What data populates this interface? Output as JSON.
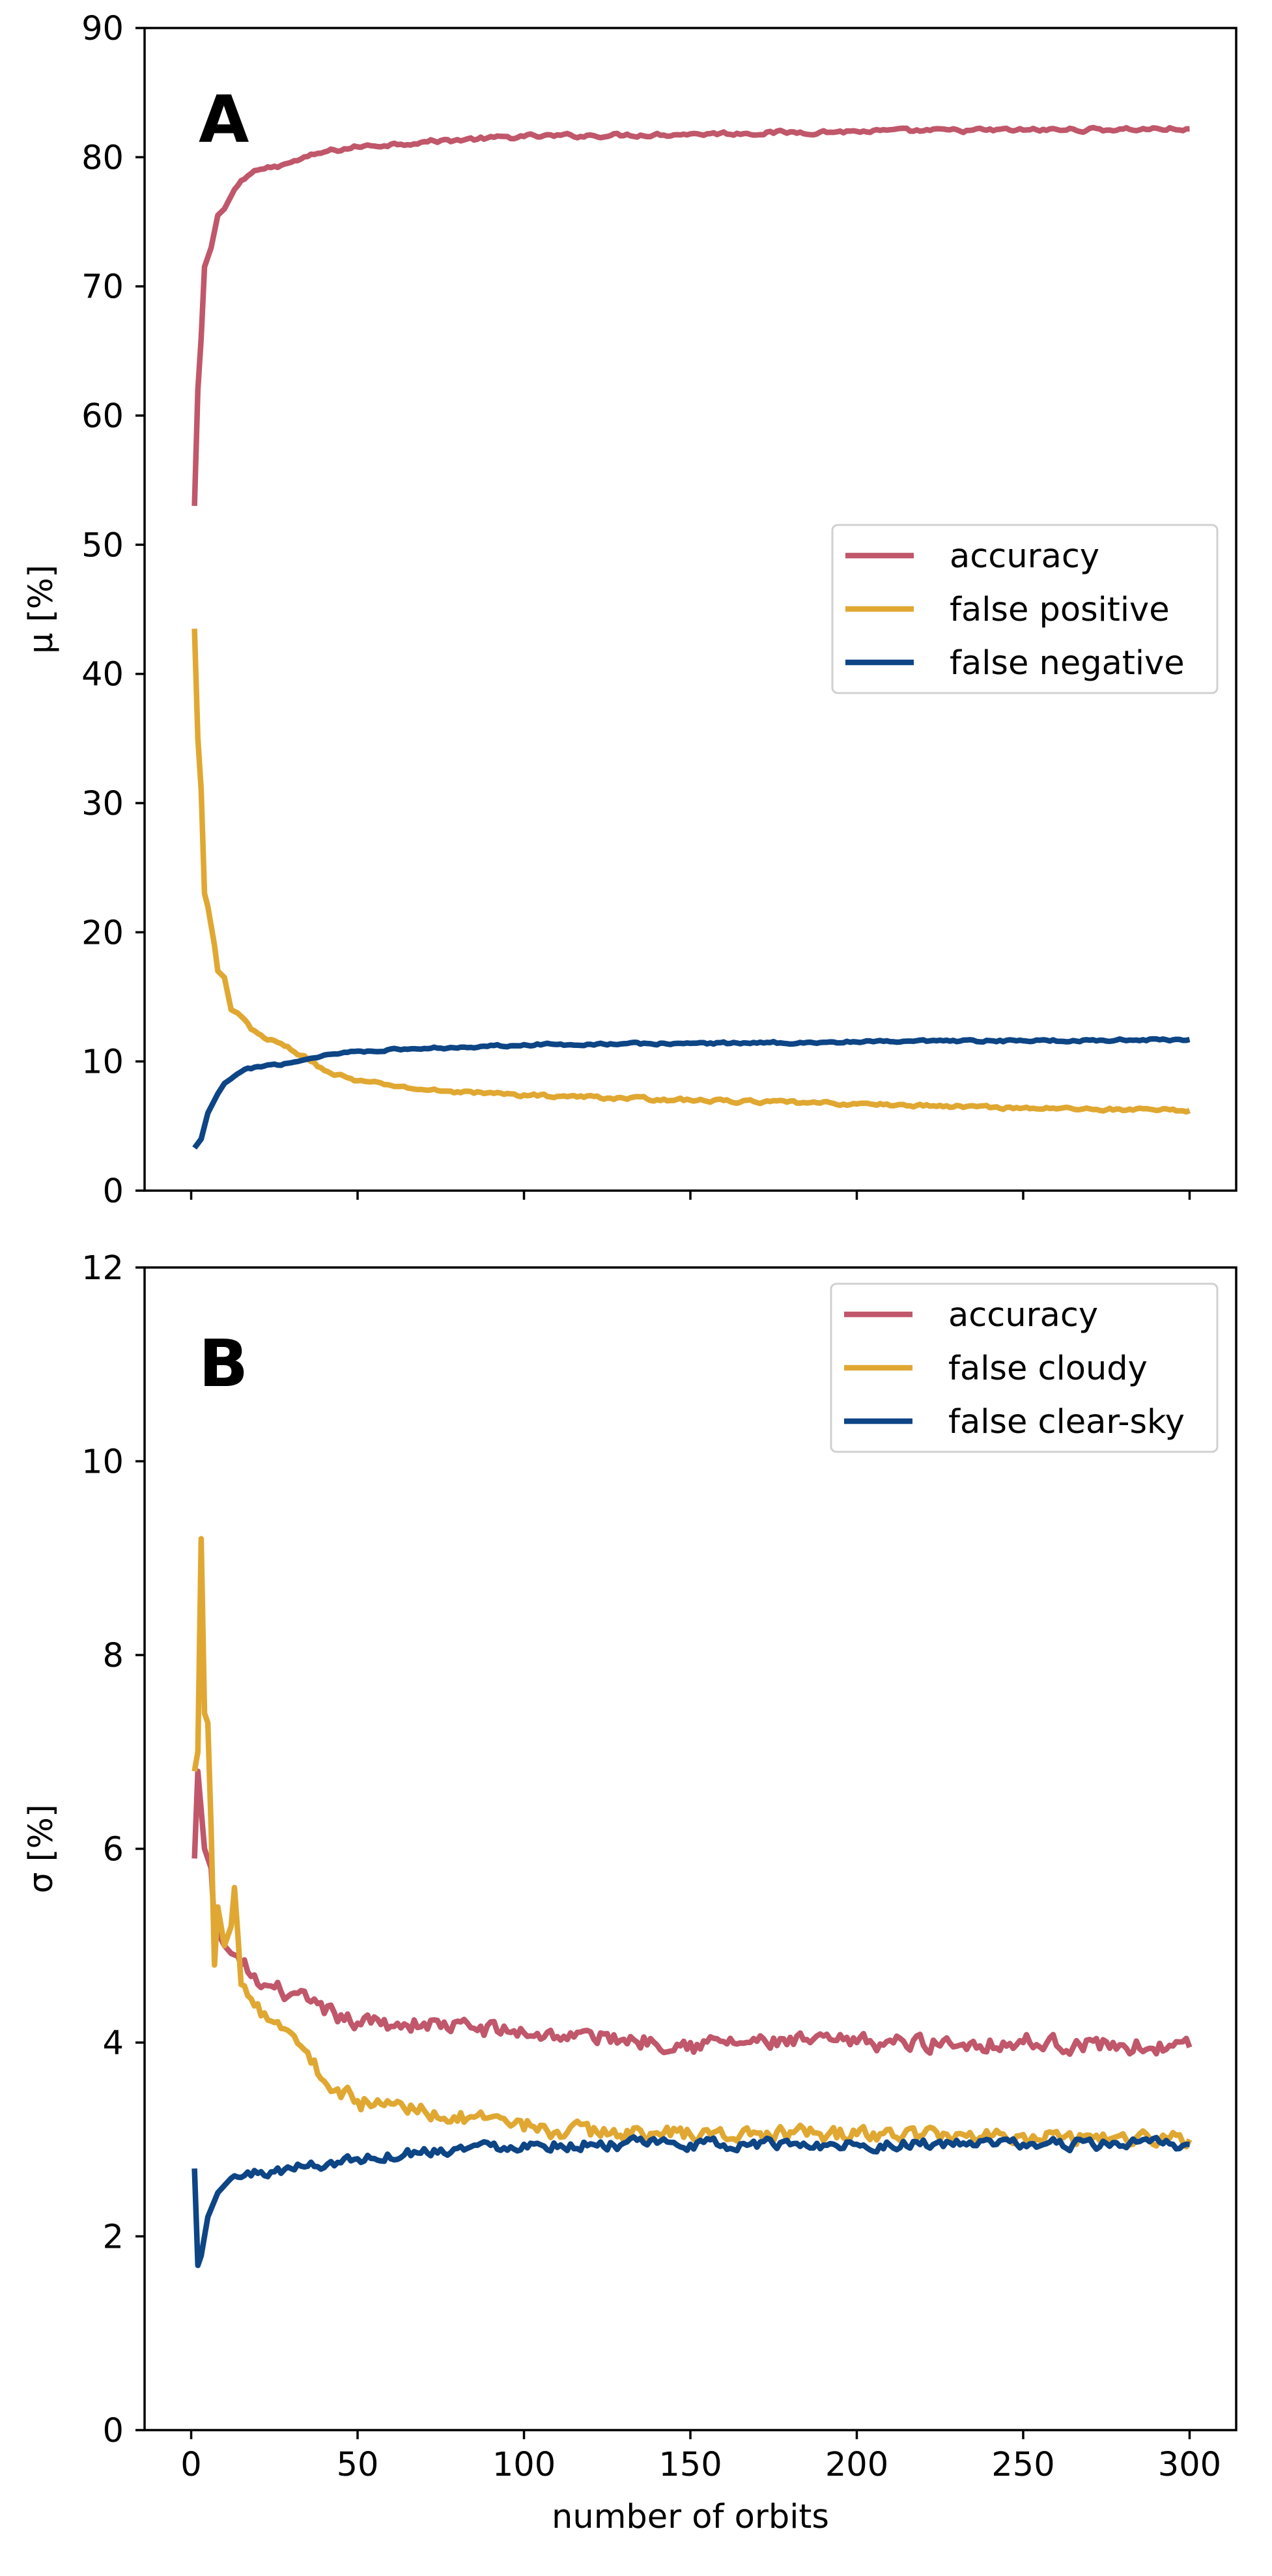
{
  "chart_data": [
    {
      "type": "line",
      "panel_label": "A",
      "xlabel": "",
      "ylabel": "μ [%]",
      "xlim": [
        -14,
        314
      ],
      "ylim": [
        0,
        90
      ],
      "xticks": [
        0,
        50,
        100,
        150,
        200,
        250,
        300
      ],
      "yticks": [
        0,
        10,
        20,
        30,
        40,
        50,
        60,
        70,
        80,
        90
      ],
      "show_x_tick_labels": false,
      "grid": false,
      "legend_position": "center-right",
      "series": [
        {
          "name": "accuracy",
          "color": "#c0576a",
          "noise": 0.25,
          "points": [
            [
              1,
              53
            ],
            [
              2,
              62
            ],
            [
              3,
              66
            ],
            [
              4,
              71.5
            ],
            [
              6,
              73
            ],
            [
              8,
              75.5
            ],
            [
              10,
              76
            ],
            [
              13,
              77.5
            ],
            [
              16,
              78.3
            ],
            [
              20,
              79
            ],
            [
              25,
              79.3
            ],
            [
              30,
              79.6
            ],
            [
              40,
              80.4
            ],
            [
              50,
              80.8
            ],
            [
              70,
              81.2
            ],
            [
              100,
              81.6
            ],
            [
              150,
              81.8
            ],
            [
              200,
              82
            ],
            [
              250,
              82.1
            ],
            [
              300,
              82.2
            ]
          ]
        },
        {
          "name": "false positive",
          "color": "#e0a832",
          "noise": 0.2,
          "points": [
            [
              1,
              43.5
            ],
            [
              2,
              35
            ],
            [
              3,
              31
            ],
            [
              4,
              23
            ],
            [
              5,
              22
            ],
            [
              7,
              19
            ],
            [
              8,
              17
            ],
            [
              10,
              16.5
            ],
            [
              12,
              14
            ],
            [
              15,
              13.5
            ],
            [
              18,
              12.5
            ],
            [
              22,
              11.8
            ],
            [
              28,
              11.2
            ],
            [
              35,
              10.2
            ],
            [
              40,
              9.3
            ],
            [
              50,
              8.5
            ],
            [
              70,
              7.8
            ],
            [
              100,
              7.4
            ],
            [
              150,
              7
            ],
            [
              200,
              6.7
            ],
            [
              250,
              6.4
            ],
            [
              300,
              6.2
            ]
          ]
        },
        {
          "name": "false negative",
          "color": "#0d4585",
          "noise": 0.15,
          "points": [
            [
              1,
              3.3
            ],
            [
              3,
              4
            ],
            [
              5,
              6
            ],
            [
              8,
              7.5
            ],
            [
              10,
              8.3
            ],
            [
              15,
              9.2
            ],
            [
              20,
              9.6
            ],
            [
              30,
              9.9
            ],
            [
              40,
              10.5
            ],
            [
              50,
              10.8
            ],
            [
              70,
              11
            ],
            [
              100,
              11.3
            ],
            [
              150,
              11.4
            ],
            [
              200,
              11.5
            ],
            [
              250,
              11.6
            ],
            [
              300,
              11.7
            ]
          ]
        }
      ]
    },
    {
      "type": "line",
      "panel_label": "B",
      "xlabel": "number of orbits",
      "ylabel": "σ [%]",
      "xlim": [
        -14,
        314
      ],
      "ylim": [
        0,
        12
      ],
      "xticks": [
        0,
        50,
        100,
        150,
        200,
        250,
        300
      ],
      "yticks": [
        0,
        2,
        4,
        6,
        8,
        10,
        12
      ],
      "show_x_tick_labels": true,
      "grid": false,
      "legend_position": "top-right",
      "series": [
        {
          "name": "accuracy",
          "color": "#c0576a",
          "noise": 0.14,
          "points": [
            [
              1,
              5.9
            ],
            [
              2,
              6.8
            ],
            [
              3,
              6.4
            ],
            [
              4,
              6
            ],
            [
              6,
              5.8
            ],
            [
              7,
              5.2
            ],
            [
              10,
              5
            ],
            [
              15,
              4.8
            ],
            [
              20,
              4.6
            ],
            [
              30,
              4.5
            ],
            [
              40,
              4.3
            ],
            [
              50,
              4.2
            ],
            [
              70,
              4.2
            ],
            [
              100,
              4.1
            ],
            [
              150,
              4
            ],
            [
              200,
              4
            ],
            [
              250,
              4
            ],
            [
              300,
              3.95
            ]
          ]
        },
        {
          "name": "false cloudy",
          "color": "#e0a832",
          "noise": 0.13,
          "points": [
            [
              1,
              6.8
            ],
            [
              2,
              7
            ],
            [
              3,
              9.2
            ],
            [
              4,
              7.4
            ],
            [
              5,
              7.3
            ],
            [
              6,
              6.2
            ],
            [
              7,
              4.8
            ],
            [
              8,
              5.4
            ],
            [
              10,
              5
            ],
            [
              12,
              5.2
            ],
            [
              13,
              5.6
            ],
            [
              15,
              4.6
            ],
            [
              20,
              4.4
            ],
            [
              30,
              4.1
            ],
            [
              35,
              3.9
            ],
            [
              40,
              3.6
            ],
            [
              50,
              3.4
            ],
            [
              70,
              3.3
            ],
            [
              100,
              3.1
            ],
            [
              150,
              3.05
            ],
            [
              200,
              3.05
            ],
            [
              250,
              3.05
            ],
            [
              300,
              3
            ]
          ]
        },
        {
          "name": "false clear-sky",
          "color": "#0d4585",
          "noise": 0.09,
          "points": [
            [
              1,
              2.7
            ],
            [
              2,
              1.7
            ],
            [
              3,
              1.8
            ],
            [
              5,
              2.2
            ],
            [
              8,
              2.45
            ],
            [
              12,
              2.6
            ],
            [
              20,
              2.65
            ],
            [
              30,
              2.7
            ],
            [
              50,
              2.8
            ],
            [
              75,
              2.9
            ],
            [
              100,
              2.95
            ],
            [
              150,
              2.95
            ],
            [
              200,
              2.95
            ],
            [
              250,
              2.95
            ],
            [
              300,
              2.95
            ]
          ]
        }
      ]
    }
  ]
}
